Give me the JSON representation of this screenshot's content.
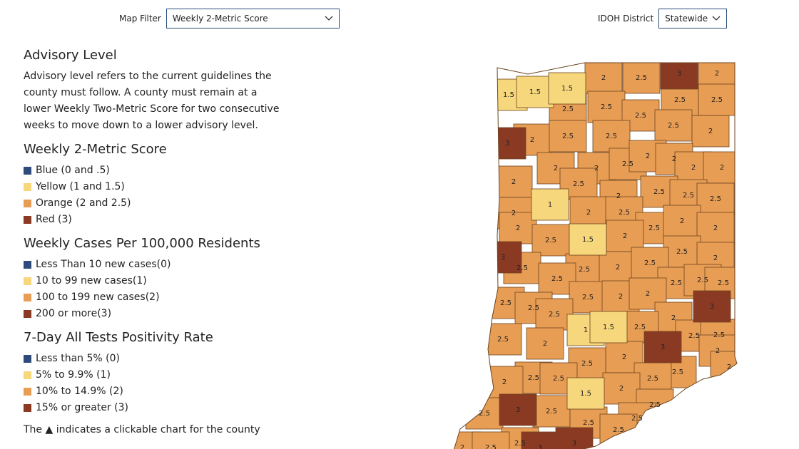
{
  "filters": [
    {
      "label": "Map Filter",
      "value": "Weekly 2-Metric Score"
    },
    {
      "label": "IDOH District",
      "value": "Statewide"
    }
  ],
  "advisory": {
    "title": "Advisory Level",
    "lines": [
      "Advisory level refers to the current guidelines the",
      "county must follow. A county must remain at a",
      "lower Weekly Two-Metric Score for two consecutive",
      "weeks to move down to a lower advisory level."
    ]
  },
  "legends": [
    {
      "title": "Weekly 2-Metric Score",
      "items": [
        {
          "label": "Blue (0 and .5)",
          "color": "#2f4b7c"
        },
        {
          "label": "Yellow (1 and 1.5)",
          "color": "#f6d77c"
        },
        {
          "label": "Orange (2 and 2.5)",
          "color": "#e89d54"
        },
        {
          "label": "Red (3)",
          "color": "#8a3a22"
        }
      ]
    },
    {
      "title": "Weekly Cases Per 100,000 Residents",
      "items": [
        {
          "label": "Less Than 10 new cases(0)",
          "color": "#2f4b7c"
        },
        {
          "label": "10 to 99 new cases(1)",
          "color": "#f6d77c"
        },
        {
          "label": "100 to 199 new cases(2)",
          "color": "#e89d54"
        },
        {
          "label": "200 or more(3)",
          "color": "#8a3a22"
        }
      ]
    },
    {
      "title": "7-Day All Tests Positivity Rate",
      "items": [
        {
          "label": "Less than 5% (0)",
          "color": "#2f4b7c"
        },
        {
          "label": "5% to 9.9% (1)",
          "color": "#f6d77c"
        },
        {
          "label": "10% to 14.9% (2)",
          "color": "#e89d54"
        },
        {
          "label": "15% or greater (3)",
          "color": "#8a3a22"
        }
      ]
    }
  ],
  "note": "The ▲ indicates a clickable chart for the county",
  "map": {
    "counties": [
      1.5,
      1.5,
      1.5,
      2,
      2.5,
      3,
      2,
      2.5,
      2.5,
      2.5,
      2.5,
      2.5,
      3,
      2,
      2.5,
      2.5,
      2.5,
      2,
      2,
      2,
      2.5,
      2,
      2,
      2,
      2,
      2,
      2.5,
      2,
      2.5,
      2.5,
      2.5,
      1,
      2,
      2.5,
      2,
      2,
      2.5,
      2,
      2,
      2.5,
      1.5,
      2,
      2.5,
      3,
      2.5,
      2.5,
      2,
      2.5,
      2,
      2.5,
      2.5,
      2.5,
      2.5,
      2.5,
      2.5,
      2.5,
      2,
      2,
      3,
      2.5,
      2,
      1,
      1.5,
      2.5,
      2.5,
      2,
      2.5,
      2.5,
      3,
      2,
      2,
      2.5,
      2.5,
      2,
      2.5,
      2.5,
      2.5,
      2,
      2,
      1.5,
      2.5,
      3,
      2.5,
      2.5,
      2.5,
      2.5,
      2.5,
      2.5,
      3,
      3,
      2,
      2.5
    ]
  }
}
